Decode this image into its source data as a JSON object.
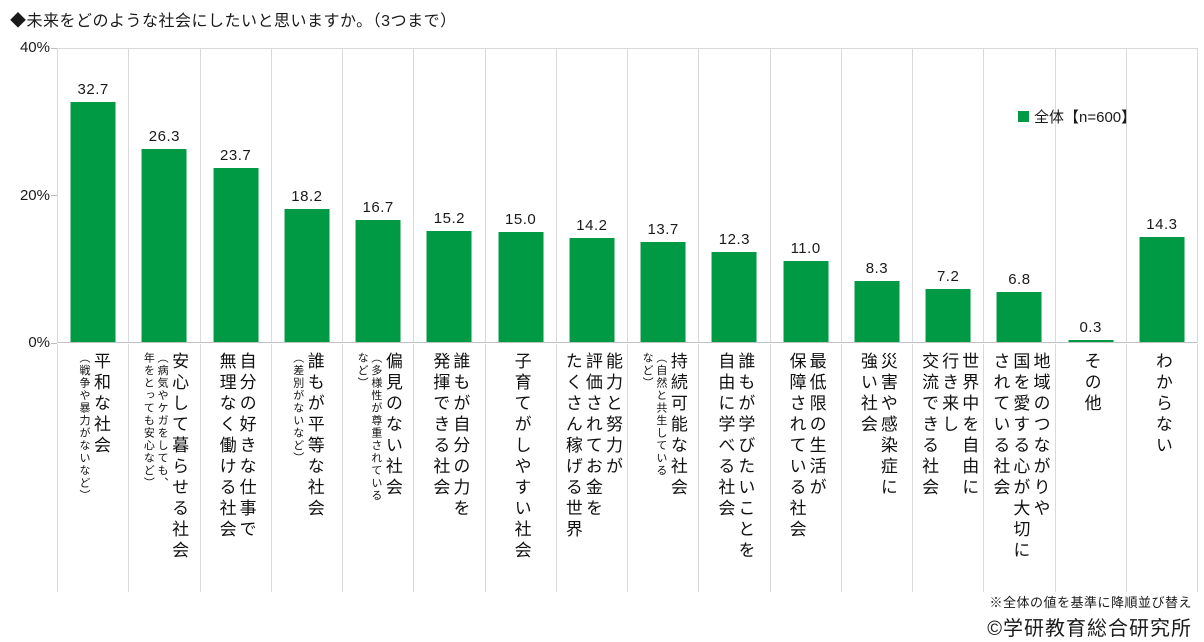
{
  "title": "◆未来をどのような社会にしたいと思いますか。（3つまで）",
  "legend": {
    "label": "全体【n=600】",
    "color": "#009944"
  },
  "footnote": "※全体の値を基準に降順並び替え",
  "copyright": "©学研教育総合研究所",
  "chart_data": {
    "type": "bar",
    "title": "未来をどのような社会にしたいと思いますか。（3つまで）",
    "xlabel": "",
    "ylabel": "%",
    "ylim": [
      0,
      40
    ],
    "yticks": [
      "40%",
      "20%",
      "0%"
    ],
    "grid": "vertical-category-separators",
    "legend_position": "upper-right",
    "bar_color": "#009944",
    "value_labels": true,
    "sort_note": "全体の値を基準に降順並び替え",
    "categories": [
      "平和な社会（戦争や暴力がないなど）",
      "安心して暮らせる社会（病気やケガをしても、年をとっても安心など）",
      "自分の好きな仕事で無理なく働ける社会",
      "誰もが平等な社会（差別がないなど）",
      "偏見のない社会（多様性が尊重されているなど）",
      "誰もが自分の力を発揮できる社会",
      "子育てがしやすい社会",
      "能力と努力が評価されてお金をたくさん稼げる世界",
      "持続可能な社会（自然と共生しているなど）",
      "誰もが学びたいことを自由に学べる社会",
      "最低限の生活が保障されている社会",
      "災害や感染症に強い社会",
      "世界中を自由に行き来し交流できる社会",
      "地域のつながりや国を愛する心が大切にされている社会",
      "その他",
      "わからない"
    ],
    "series": [
      {
        "name": "全体【n=600】",
        "values": [
          32.7,
          26.3,
          23.7,
          18.2,
          16.7,
          15.2,
          15.0,
          14.2,
          13.7,
          12.3,
          11.0,
          8.3,
          7.2,
          6.8,
          0.3,
          14.3
        ]
      }
    ]
  },
  "category_display": [
    {
      "main_lines": [
        "平和な社会"
      ],
      "note_lines": [
        "（戦争や暴力がないなど）"
      ]
    },
    {
      "main_lines": [
        "安心して暮らせる社会"
      ],
      "note_lines": [
        "（病気やケガをしても、",
        "年をとっても安心など）"
      ]
    },
    {
      "main_lines": [
        "自分の好きな仕事で",
        "無理なく働ける社会"
      ],
      "note_lines": []
    },
    {
      "main_lines": [
        "誰もが平等な社会"
      ],
      "note_lines": [
        "（差別がないなど）"
      ]
    },
    {
      "main_lines": [
        "偏見のない社会"
      ],
      "note_lines": [
        "（多様性が尊重されている",
        "など）"
      ]
    },
    {
      "main_lines": [
        "誰もが自分の力を",
        "発揮できる社会"
      ],
      "note_lines": []
    },
    {
      "main_lines": [
        "子育てがしやすい社会"
      ],
      "note_lines": []
    },
    {
      "main_lines": [
        "能力と努力が",
        "評価されてお金を",
        "たくさん稼げる世界"
      ],
      "note_lines": []
    },
    {
      "main_lines": [
        "持続可能な社会"
      ],
      "note_lines": [
        "（自然と共生している",
        "など）"
      ]
    },
    {
      "main_lines": [
        "誰もが学びたいことを",
        "自由に学べる社会"
      ],
      "note_lines": []
    },
    {
      "main_lines": [
        "最低限の生活が",
        "保障されている社会"
      ],
      "note_lines": []
    },
    {
      "main_lines": [
        "災害や感染症に",
        "強い社会"
      ],
      "note_lines": []
    },
    {
      "main_lines": [
        "世界中を自由に",
        "行き来し",
        "交流できる社会"
      ],
      "note_lines": []
    },
    {
      "main_lines": [
        "地域のつながりや",
        "国を愛する心が大切に",
        "されている社会"
      ],
      "note_lines": []
    },
    {
      "main_lines": [
        "その他"
      ],
      "note_lines": []
    },
    {
      "main_lines": [
        "わからない"
      ],
      "note_lines": []
    }
  ]
}
